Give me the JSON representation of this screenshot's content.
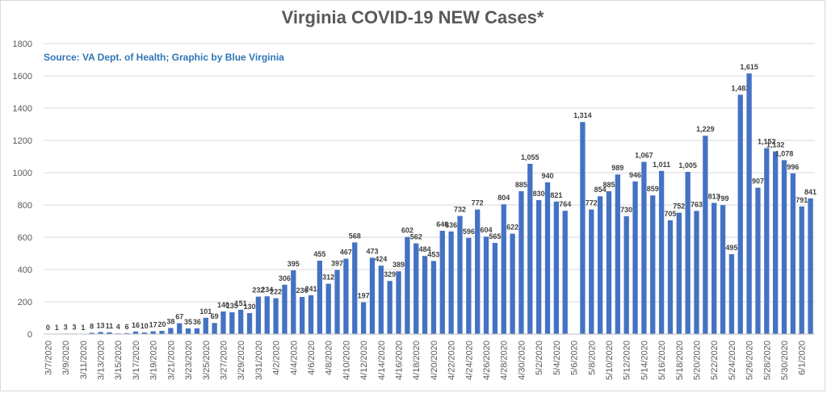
{
  "chart_data": {
    "type": "bar",
    "title": "Virginia COVID-19 NEW Cases*",
    "subtitle": "Source: VA Dept. of Health; Graphic by Blue Virginia",
    "ylim": [
      0,
      1800
    ],
    "yticks": [
      0,
      200,
      400,
      600,
      800,
      1000,
      1200,
      1400,
      1600,
      1800
    ],
    "grid": true,
    "bar_color": "#4472c4",
    "start_date": "3/7/2020",
    "x_tick_labels": [
      "3/7/2020",
      "3/9/2020",
      "3/11/2020",
      "3/13/2020",
      "3/15/2020",
      "3/17/2020",
      "3/19/2020",
      "3/21/2020",
      "3/23/2020",
      "3/25/2020",
      "3/27/2020",
      "3/29/2020",
      "3/31/2020",
      "4/2/2020",
      "4/4/2020",
      "4/6/2020",
      "4/8/2020",
      "4/10/2020",
      "4/12/2020",
      "4/14/2020",
      "4/16/2020",
      "4/18/2020",
      "4/20/2020",
      "4/22/2020",
      "4/24/2020",
      "4/26/2020",
      "4/28/2020",
      "4/30/2020",
      "5/2/2020",
      "5/4/2020",
      "5/6/2020",
      "5/8/2020",
      "5/10/2020",
      "5/12/2020",
      "5/14/2020",
      "5/16/2020",
      "5/18/2020",
      "5/20/2020",
      "5/22/2020",
      "5/24/2020",
      "5/26/2020",
      "5/28/2020",
      "5/30/2020",
      "6/1/2020"
    ],
    "values": [
      0,
      1,
      3,
      3,
      1,
      8,
      13,
      11,
      4,
      6,
      16,
      10,
      17,
      20,
      38,
      67,
      35,
      36,
      101,
      69,
      140,
      135,
      151,
      130,
      232,
      234,
      222,
      306,
      395,
      230,
      241,
      455,
      312,
      397,
      467,
      568,
      197,
      473,
      424,
      329,
      389,
      602,
      562,
      484,
      453,
      640,
      636,
      732,
      596,
      772,
      604,
      565,
      804,
      622,
      885,
      1055,
      830,
      940,
      821,
      764,
      null,
      1314,
      772,
      854,
      885,
      989,
      730,
      946,
      1067,
      859,
      1011,
      705,
      752,
      1005,
      763,
      1229,
      813,
      799,
      495,
      1483,
      1615,
      907,
      1152,
      1132,
      1078,
      996,
      791,
      841
    ],
    "data_labels": [
      "0",
      "1",
      "3",
      "3",
      "1",
      "8",
      "13",
      "11",
      "4",
      "6",
      "16",
      "10",
      "17",
      "20",
      "38",
      "67",
      "35",
      "36",
      "101",
      "69",
      "140",
      "135",
      "151",
      "130",
      "232",
      "234",
      "222",
      "306",
      "395",
      "230",
      "241",
      "455",
      "312",
      "397",
      "467",
      "568",
      "197",
      "473",
      "424",
      "329",
      "389",
      "602",
      "562",
      "484",
      "453",
      "640",
      "636",
      "732",
      "596",
      "772",
      "604",
      "565",
      "804",
      "622",
      "885",
      "1,055",
      "830",
      "940",
      "821",
      "764",
      "",
      "1,314",
      "772",
      "854",
      "885",
      "989",
      "730",
      "946",
      "1,067",
      "859",
      "1,011",
      "705",
      "752",
      "1,005",
      "763",
      "1,229",
      "813",
      "799",
      "495",
      "1,483",
      "1,615",
      "907",
      "1,152",
      "1,132",
      "1,078",
      "996",
      "791",
      "841"
    ]
  }
}
